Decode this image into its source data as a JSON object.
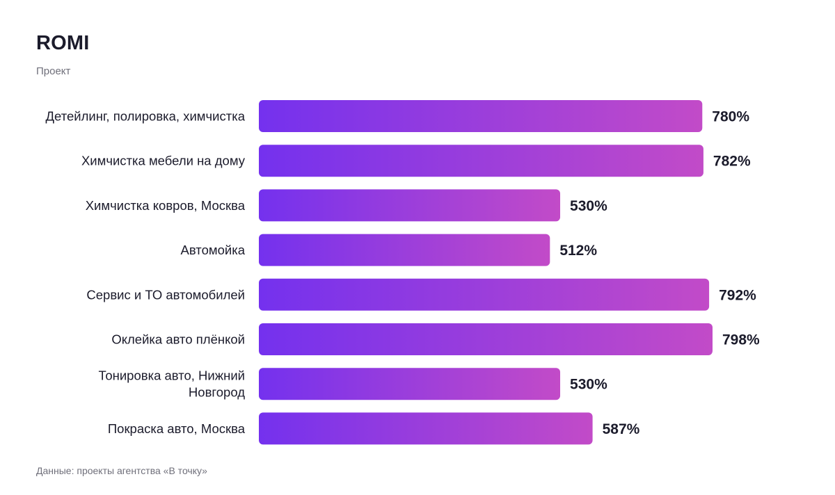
{
  "header": {
    "title": "ROMI",
    "subtitle": "Проект"
  },
  "footer": {
    "source": "Данные: проекты агентства «В точку»"
  },
  "colors": {
    "bar_start": "#7431ee",
    "bar_end": "#c24bc8",
    "label_text": "#1b1b2b",
    "value_text": "#1b1b2b"
  },
  "chart_data": {
    "type": "bar",
    "orientation": "horizontal",
    "title": "ROMI",
    "subtitle": "Проект",
    "categories": [
      [
        "Детейлинг, полировка, химчистка"
      ],
      [
        "Химчистка мебели на дому"
      ],
      [
        "Химчистка ковров, Москва"
      ],
      [
        "Автомойка"
      ],
      [
        "Сервис и ТО автомобилей"
      ],
      [
        "Оклейка авто плёнкой"
      ],
      [
        "Тонировка авто, Нижний",
        "Новгород"
      ],
      [
        "Покраска авто, Москва"
      ]
    ],
    "values": [
      780,
      782,
      530,
      512,
      792,
      798,
      530,
      587
    ],
    "value_labels": [
      "780%",
      "782%",
      "530%",
      "512%",
      "792%",
      "798%",
      "530%",
      "587%"
    ],
    "unit": "%",
    "xlim": [
      0,
      798
    ],
    "grid": false,
    "legend": "none"
  }
}
